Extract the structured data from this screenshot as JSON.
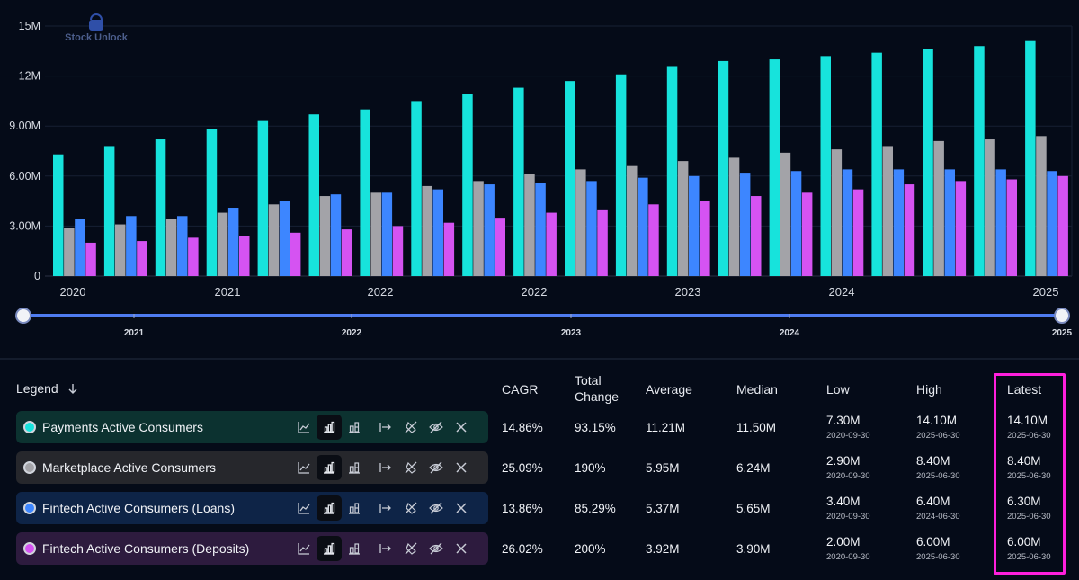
{
  "chart_data": {
    "type": "bar",
    "watermark": "Stock Unlock",
    "y_ticks": [
      "0",
      "3.00M",
      "6.00M",
      "9.00M",
      "12M",
      "15M"
    ],
    "ylim": [
      0,
      15000000
    ],
    "x_axis_labels": [
      "2020",
      "2021",
      "2022",
      "2022",
      "2023",
      "2024",
      "2025"
    ],
    "range_slider_labels": [
      "2021",
      "2022",
      "2023",
      "2024",
      "2025"
    ],
    "series": [
      {
        "name": "Payments Active Consumers",
        "color": "#17e3dc",
        "values": [
          7.3,
          7.8,
          8.2,
          8.8,
          9.3,
          9.7,
          10.0,
          10.5,
          10.9,
          11.3,
          11.7,
          12.1,
          12.6,
          12.9,
          13.0,
          13.2,
          13.4,
          13.6,
          13.8,
          14.1
        ]
      },
      {
        "name": "Marketplace Active Consumers",
        "color": "#a3a3a8",
        "values": [
          2.9,
          3.1,
          3.4,
          3.8,
          4.3,
          4.8,
          5.0,
          5.4,
          5.7,
          6.1,
          6.4,
          6.6,
          6.9,
          7.1,
          7.4,
          7.6,
          7.8,
          8.1,
          8.2,
          8.4
        ]
      },
      {
        "name": "Fintech Active Consumers (Loans)",
        "color": "#3d86ff",
        "values": [
          3.4,
          3.6,
          3.6,
          4.1,
          4.5,
          4.9,
          5.0,
          5.2,
          5.5,
          5.6,
          5.7,
          5.9,
          6.0,
          6.2,
          6.3,
          6.4,
          6.4,
          6.4,
          6.4,
          6.3
        ]
      },
      {
        "name": "Fintech Active Consumers (Deposits)",
        "color": "#d553f2",
        "values": [
          2.0,
          2.1,
          2.3,
          2.4,
          2.6,
          2.8,
          3.0,
          3.2,
          3.5,
          3.8,
          4.0,
          4.3,
          4.5,
          4.8,
          5.0,
          5.2,
          5.5,
          5.7,
          5.8,
          6.0
        ]
      }
    ]
  },
  "legend": {
    "title": "Legend",
    "sort_icon": "arrow-down-icon",
    "columns": {
      "cagr": "CAGR",
      "total_change": "Total Change",
      "average": "Average",
      "median": "Median",
      "low": "Low",
      "high": "High",
      "latest": "Latest"
    },
    "rows": [
      {
        "name": "Payments Active Consumers",
        "color": "#17e3dc",
        "row_bg": "#0c3230",
        "cagr": "14.86%",
        "total_change": "93.15%",
        "average": "11.21M",
        "median": "11.50M",
        "low": "7.30M",
        "low_date": "2020-09-30",
        "high": "14.10M",
        "high_date": "2025-06-30",
        "latest": "14.10M",
        "latest_date": "2025-06-30"
      },
      {
        "name": "Marketplace Active Consumers",
        "color": "#a3a3a8",
        "row_bg": "#26272c",
        "cagr": "25.09%",
        "total_change": "190%",
        "average": "5.95M",
        "median": "6.24M",
        "low": "2.90M",
        "low_date": "2020-09-30",
        "high": "8.40M",
        "high_date": "2025-06-30",
        "latest": "8.40M",
        "latest_date": "2025-06-30"
      },
      {
        "name": "Fintech Active Consumers (Loans)",
        "color": "#3d86ff",
        "row_bg": "#0e2447",
        "cagr": "13.86%",
        "total_change": "85.29%",
        "average": "5.37M",
        "median": "5.65M",
        "low": "3.40M",
        "low_date": "2020-09-30",
        "high": "6.40M",
        "high_date": "2024-06-30",
        "latest": "6.30M",
        "latest_date": "2025-06-30"
      },
      {
        "name": "Fintech Active Consumers (Deposits)",
        "color": "#d553f2",
        "row_bg": "#2d1b3e",
        "cagr": "26.02%",
        "total_change": "200%",
        "average": "3.92M",
        "median": "3.90M",
        "low": "2.00M",
        "low_date": "2020-09-30",
        "high": "6.00M",
        "high_date": "2025-06-30",
        "latest": "6.00M",
        "latest_date": "2025-06-30"
      }
    ]
  }
}
